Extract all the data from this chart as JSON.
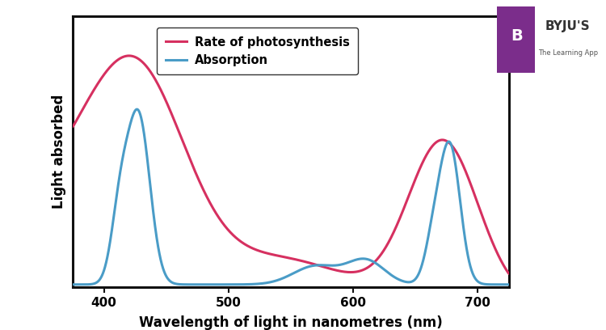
{
  "xlabel": "Wavelength of light in nanometres (nm)",
  "ylabel": "Light absorbed",
  "xlim": [
    375,
    725
  ],
  "ylim": [
    0,
    1.05
  ],
  "background_color": "#ffffff",
  "legend_labels": [
    "Rate of photosynthesis",
    "Absorption"
  ],
  "photosynthesis_color": "#d63060",
  "absorption_color": "#4a9cc7",
  "line_width": 2.2,
  "xticks": [
    400,
    500,
    600,
    700
  ],
  "font_size_label": 12,
  "font_size_tick": 11
}
